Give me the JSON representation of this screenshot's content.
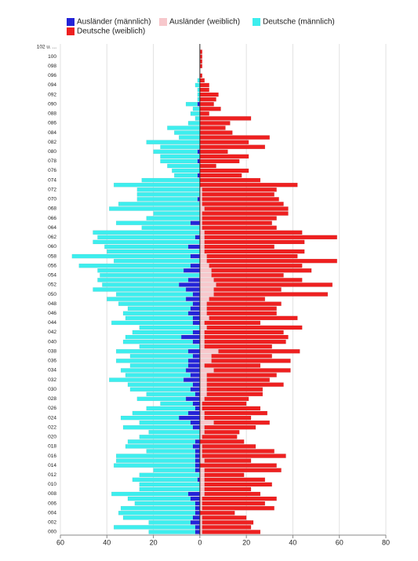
{
  "chart_data": {
    "type": "pyramid",
    "categories": [
      "000",
      null,
      "002",
      null,
      "004",
      null,
      "006",
      null,
      "008",
      null,
      "010",
      null,
      "012",
      null,
      "014",
      null,
      "016",
      null,
      "018",
      null,
      "020",
      null,
      "022",
      null,
      "024",
      null,
      "026",
      null,
      "028",
      null,
      "030",
      null,
      "032",
      null,
      "034",
      null,
      "036",
      null,
      "038",
      null,
      "040",
      null,
      "042",
      null,
      "044",
      null,
      "046",
      null,
      "048",
      null,
      "050",
      null,
      "052",
      null,
      "054",
      null,
      "056",
      null,
      "058",
      null,
      "060",
      null,
      "062",
      null,
      "064",
      null,
      "066",
      null,
      "068",
      null,
      "070",
      null,
      "072",
      null,
      "074",
      null,
      "076",
      null,
      "078",
      null,
      "080",
      null,
      "082",
      null,
      "084",
      null,
      "086",
      null,
      "088",
      null,
      "090",
      null,
      "092",
      null,
      "094",
      null,
      "096",
      null,
      "098",
      null,
      "100",
      null,
      "102 u. ..."
    ],
    "series": [
      {
        "name": "Ausländer (männlich)",
        "color": "#2424d8",
        "values": [
          -2,
          -2,
          -4,
          -3,
          -2,
          -2,
          -2,
          -4,
          -5,
          0,
          0,
          -1,
          0,
          -2,
          -2,
          -2,
          -2,
          -2,
          -3,
          -2,
          0,
          0,
          -3,
          -4,
          -9,
          -5,
          -2,
          -3,
          -6,
          -2,
          -4,
          -3,
          -7,
          -4,
          -6,
          -5,
          -5,
          -3,
          -5,
          0,
          -3,
          -8,
          -3,
          0,
          -3,
          -3,
          -5,
          -4,
          -3,
          -6,
          -3,
          -6,
          -9,
          -5,
          0,
          -7,
          -4,
          0,
          -4,
          0,
          -5,
          0,
          -2,
          0,
          0,
          -4,
          0,
          0,
          0,
          0,
          -1,
          0,
          0,
          0,
          0,
          -1,
          0,
          0,
          -1,
          0,
          -1,
          0,
          0,
          0,
          0,
          0,
          0,
          0,
          0,
          0,
          -1,
          0,
          0,
          0,
          0,
          0,
          0,
          0,
          0,
          0,
          0,
          0,
          0
        ]
      },
      {
        "name": "Ausländer (weiblich)",
        "color": "#f7c8cc",
        "values": [
          1,
          1,
          1,
          1,
          0,
          1,
          1,
          1,
          2,
          2,
          2,
          2,
          2,
          2,
          0,
          2,
          1,
          1,
          1,
          0,
          1,
          2,
          2,
          6,
          2,
          2,
          1,
          1,
          2,
          3,
          3,
          3,
          3,
          3,
          6,
          2,
          5,
          5,
          8,
          2,
          2,
          2,
          2,
          3,
          2,
          4,
          3,
          3,
          3,
          4,
          6,
          6,
          7,
          6,
          5,
          5,
          4,
          3,
          3,
          2,
          2,
          2,
          2,
          2,
          1,
          1,
          1,
          1,
          2,
          1,
          1,
          1,
          1,
          0,
          0,
          0,
          0,
          0,
          0,
          0,
          0,
          0,
          0,
          0,
          0,
          0,
          0,
          0,
          0,
          0,
          0,
          0,
          0,
          0,
          0,
          0,
          0,
          0,
          0,
          0,
          0,
          0,
          0
        ]
      },
      {
        "name": "Deutsche (männlich)",
        "color": "#3deeee",
        "values": [
          -20,
          -35,
          -18,
          -30,
          -33,
          -32,
          -26,
          -27,
          -33,
          -26,
          -26,
          -28,
          -26,
          -18,
          -35,
          -34,
          -34,
          -21,
          -29,
          -29,
          -26,
          -22,
          -30,
          -22,
          -25,
          -24,
          -21,
          -14,
          -21,
          -21,
          -26,
          -28,
          -32,
          -28,
          -28,
          -25,
          -31,
          -27,
          -31,
          -26,
          -30,
          -24,
          -26,
          -26,
          -35,
          -29,
          -28,
          -27,
          -32,
          -34,
          -33,
          -40,
          -33,
          -39,
          -43,
          -37,
          -48,
          -37,
          -51,
          -40,
          -36,
          -46,
          -42,
          -46,
          -25,
          -32,
          -23,
          -20,
          -39,
          -35,
          -26,
          -27,
          -27,
          -37,
          -25,
          -10,
          -12,
          -14,
          -16,
          -17,
          -19,
          -17,
          -23,
          -9,
          -11,
          -14,
          -5,
          -2,
          -4,
          -3,
          -5,
          -1,
          -1,
          -1,
          -2,
          -1,
          0,
          0,
          0,
          0,
          0,
          0,
          0
        ]
      },
      {
        "name": "Deutsche (weiblich)",
        "color": "#ee2020",
        "values": [
          25,
          21,
          22,
          19,
          15,
          31,
          27,
          32,
          24,
          20,
          29,
          26,
          17,
          33,
          33,
          20,
          36,
          31,
          23,
          19,
          15,
          15,
          22,
          24,
          20,
          27,
          25,
          19,
          19,
          24,
          24,
          33,
          27,
          30,
          33,
          24,
          34,
          26,
          35,
          29,
          35,
          36,
          34,
          41,
          24,
          38,
          30,
          30,
          32,
          24,
          49,
          29,
          50,
          38,
          31,
          43,
          40,
          56,
          39,
          43,
          30,
          43,
          57,
          42,
          32,
          30,
          32,
          37,
          36,
          35,
          33,
          31,
          32,
          42,
          26,
          18,
          21,
          7,
          17,
          21,
          12,
          28,
          21,
          30,
          14,
          11,
          13,
          22,
          4,
          9,
          6,
          7,
          8,
          4,
          4,
          2,
          1,
          0,
          1,
          1,
          1,
          1,
          0
        ]
      }
    ],
    "xlim": [
      -60,
      80
    ],
    "xticks": [
      {
        "value": -60,
        "label": "60"
      },
      {
        "value": -40,
        "label": "40"
      },
      {
        "value": -20,
        "label": "20"
      },
      0,
      20,
      40,
      60,
      80
    ],
    "grid": true
  }
}
